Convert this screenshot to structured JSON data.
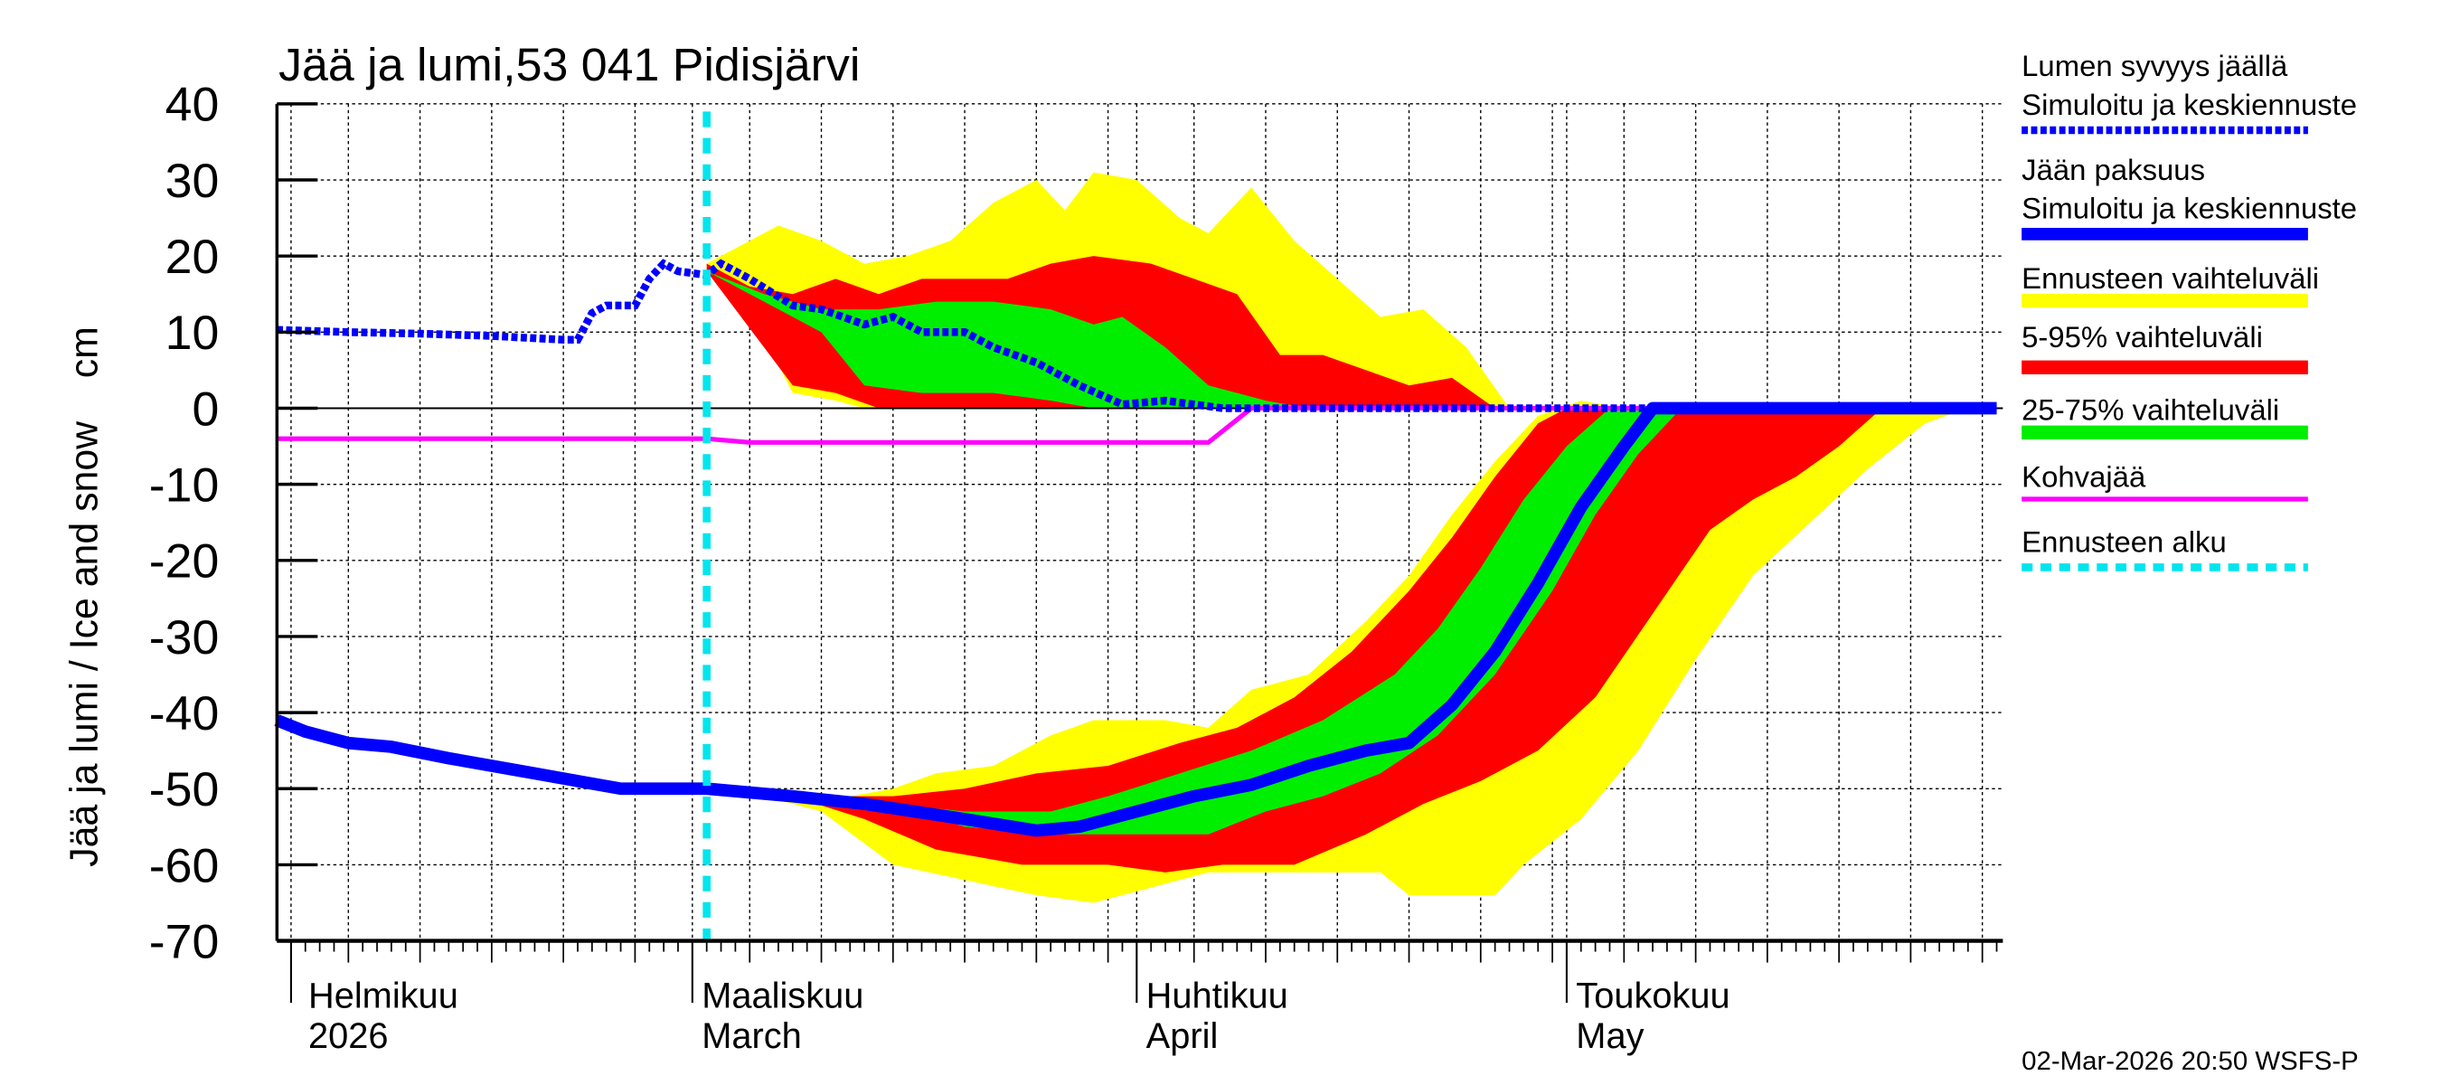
{
  "chart_data": {
    "type": "area",
    "title": "Jää ja lumi,53 041 Pidisjärvi",
    "ylabel": "Jää ja lumi / Ice and snow    cm",
    "ylim": [
      -70,
      40
    ],
    "yticks": [
      40,
      30,
      20,
      10,
      0,
      -10,
      -20,
      -30,
      -40,
      -50,
      -60,
      -70
    ],
    "xlim": [
      "2026-01-31",
      "2026-05-31"
    ],
    "grid": true,
    "legend_placement": "right",
    "month_labels": [
      {
        "date": "2026-02-01",
        "fi": "Helmikuu",
        "en": "2026"
      },
      {
        "date": "2026-03-01",
        "fi": "Maaliskuu",
        "en": "March"
      },
      {
        "date": "2026-04-01",
        "fi": "Huhtikuu",
        "en": "April"
      },
      {
        "date": "2026-05-01",
        "fi": "Toukokuu",
        "en": "May"
      }
    ],
    "forecast_start": "2026-03-02",
    "footer": "02-Mar-2026 20:50 WSFS-P",
    "legend": [
      {
        "key": "snow",
        "label1": "Lumen syvyys jäällä",
        "label2": "Simuloitu ja keskiennuste",
        "color": "#0000ff",
        "style": "dotted"
      },
      {
        "key": "ice",
        "label1": "Jään paksuus",
        "label2": "Simuloitu ja keskiennuste",
        "color": "#0000ff",
        "style": "solid"
      },
      {
        "key": "range",
        "label1": "Ennusteen vaihteluväli",
        "color": "#ffff00",
        "style": "band"
      },
      {
        "key": "p595",
        "label1": "5-95% vaihteluväli",
        "color": "#ff0000",
        "style": "band"
      },
      {
        "key": "p2575",
        "label1": "25-75% vaihteluväli",
        "color": "#00ee00",
        "style": "band"
      },
      {
        "key": "slush",
        "label1": "Kohvajää",
        "color": "#ff00ff",
        "style": "solid"
      },
      {
        "key": "fstart",
        "label1": "Ennusteen alku",
        "color": "#00e5ee",
        "style": "dotted"
      }
    ],
    "series": {
      "snow": [
        [
          "2026-01-31",
          10.3
        ],
        [
          "2026-02-05",
          10
        ],
        [
          "2026-02-10",
          9.8
        ],
        [
          "2026-02-15",
          9.5
        ],
        [
          "2026-02-20",
          9
        ],
        [
          "2026-02-21",
          9
        ],
        [
          "2026-02-22",
          12.5
        ],
        [
          "2026-02-23",
          13.5
        ],
        [
          "2026-02-25",
          13.5
        ],
        [
          "2026-02-26",
          17
        ],
        [
          "2026-02-27",
          19
        ],
        [
          "2026-02-28",
          18
        ],
        [
          "2026-03-02",
          17.5
        ],
        [
          "2026-03-03",
          19
        ],
        [
          "2026-03-05",
          17
        ],
        [
          "2026-03-08",
          13.5
        ],
        [
          "2026-03-10",
          13
        ],
        [
          "2026-03-13",
          11
        ],
        [
          "2026-03-15",
          12
        ],
        [
          "2026-03-17",
          10
        ],
        [
          "2026-03-20",
          10
        ],
        [
          "2026-03-22",
          8
        ],
        [
          "2026-03-25",
          6
        ],
        [
          "2026-03-28",
          3
        ],
        [
          "2026-03-31",
          0.5
        ],
        [
          "2026-04-03",
          1
        ],
        [
          "2026-04-07",
          0
        ],
        [
          "2026-05-31",
          0
        ]
      ],
      "ice": [
        [
          "2026-01-31",
          -41
        ],
        [
          "2026-02-02",
          -42.5
        ],
        [
          "2026-02-05",
          -44
        ],
        [
          "2026-02-08",
          -44.5
        ],
        [
          "2026-02-12",
          -46
        ],
        [
          "2026-02-15",
          -47
        ],
        [
          "2026-02-18",
          -48
        ],
        [
          "2026-02-21",
          -49
        ],
        [
          "2026-02-24",
          -50
        ],
        [
          "2026-03-02",
          -50
        ],
        [
          "2026-03-08",
          -51
        ],
        [
          "2026-03-13",
          -52
        ],
        [
          "2026-03-20",
          -54
        ],
        [
          "2026-03-25",
          -55.5
        ],
        [
          "2026-03-28",
          -55
        ],
        [
          "2026-04-01",
          -53
        ],
        [
          "2026-04-05",
          -51
        ],
        [
          "2026-04-09",
          -49.5
        ],
        [
          "2026-04-13",
          -47
        ],
        [
          "2026-04-17",
          -45
        ],
        [
          "2026-04-20",
          -44
        ],
        [
          "2026-04-23",
          -39
        ],
        [
          "2026-04-26",
          -32
        ],
        [
          "2026-04-29",
          -23
        ],
        [
          "2026-05-02",
          -13
        ],
        [
          "2026-05-05",
          -5
        ],
        [
          "2026-05-07",
          0
        ],
        [
          "2026-05-31",
          0
        ]
      ],
      "slush": [
        [
          "2026-01-31",
          -4
        ],
        [
          "2026-03-02",
          -4
        ],
        [
          "2026-03-05",
          -4.5
        ],
        [
          "2026-04-06",
          -4.5
        ],
        [
          "2026-04-09",
          0
        ],
        [
          "2026-05-31",
          0
        ]
      ],
      "range_snow": {
        "upper": [
          [
            "2026-03-02",
            19
          ],
          [
            "2026-03-04",
            21
          ],
          [
            "2026-03-07",
            24
          ],
          [
            "2026-03-10",
            22
          ],
          [
            "2026-03-13",
            19
          ],
          [
            "2026-03-16",
            20
          ],
          [
            "2026-03-19",
            22
          ],
          [
            "2026-03-22",
            27
          ],
          [
            "2026-03-25",
            30
          ],
          [
            "2026-03-27",
            26
          ],
          [
            "2026-03-29",
            31
          ],
          [
            "2026-04-01",
            30
          ],
          [
            "2026-04-04",
            25
          ],
          [
            "2026-04-06",
            23
          ],
          [
            "2026-04-09",
            29
          ],
          [
            "2026-04-12",
            22
          ],
          [
            "2026-04-15",
            17
          ],
          [
            "2026-04-18",
            12
          ],
          [
            "2026-04-21",
            13
          ],
          [
            "2026-04-24",
            8
          ],
          [
            "2026-04-27",
            0
          ]
        ],
        "lower": [
          [
            "2026-03-02",
            18
          ],
          [
            "2026-03-05",
            13
          ],
          [
            "2026-03-08",
            2
          ],
          [
            "2026-03-11",
            1
          ],
          [
            "2026-03-13",
            0
          ],
          [
            "2026-04-27",
            0
          ]
        ]
      },
      "p595_snow": {
        "upper": [
          [
            "2026-03-02",
            19
          ],
          [
            "2026-03-05",
            16
          ],
          [
            "2026-03-08",
            15
          ],
          [
            "2026-03-11",
            17
          ],
          [
            "2026-03-14",
            15
          ],
          [
            "2026-03-17",
            17
          ],
          [
            "2026-03-20",
            17
          ],
          [
            "2026-03-23",
            17
          ],
          [
            "2026-03-26",
            19
          ],
          [
            "2026-03-29",
            20
          ],
          [
            "2026-04-02",
            19
          ],
          [
            "2026-04-05",
            17
          ],
          [
            "2026-04-08",
            15
          ],
          [
            "2026-04-11",
            7
          ],
          [
            "2026-04-14",
            7
          ],
          [
            "2026-04-17",
            5
          ],
          [
            "2026-04-20",
            3
          ],
          [
            "2026-04-23",
            4
          ],
          [
            "2026-04-26",
            0
          ]
        ],
        "lower": [
          [
            "2026-03-02",
            18
          ],
          [
            "2026-03-06",
            8
          ],
          [
            "2026-03-08",
            3
          ],
          [
            "2026-03-11",
            2
          ],
          [
            "2026-03-14",
            0
          ],
          [
            "2026-04-26",
            0
          ]
        ]
      },
      "p2575_snow": {
        "upper": [
          [
            "2026-03-02",
            18
          ],
          [
            "2026-03-06",
            15
          ],
          [
            "2026-03-10",
            13
          ],
          [
            "2026-03-14",
            13
          ],
          [
            "2026-03-18",
            14
          ],
          [
            "2026-03-22",
            14
          ],
          [
            "2026-03-26",
            13
          ],
          [
            "2026-03-29",
            11
          ],
          [
            "2026-03-31",
            12
          ],
          [
            "2026-04-03",
            8
          ],
          [
            "2026-04-06",
            3
          ],
          [
            "2026-04-10",
            1
          ],
          [
            "2026-04-13",
            0
          ]
        ],
        "lower": [
          [
            "2026-03-02",
            18
          ],
          [
            "2026-03-06",
            14
          ],
          [
            "2026-03-10",
            10
          ],
          [
            "2026-03-13",
            3
          ],
          [
            "2026-03-17",
            2
          ],
          [
            "2026-03-22",
            2
          ],
          [
            "2026-03-26",
            1
          ],
          [
            "2026-03-29",
            0
          ],
          [
            "2026-04-13",
            0
          ]
        ]
      },
      "range_ice": {
        "upper": [
          [
            "2026-03-05",
            -50.5
          ],
          [
            "2026-03-12",
            -51
          ],
          [
            "2026-03-15",
            -50
          ],
          [
            "2026-03-18",
            -48
          ],
          [
            "2026-03-22",
            -47
          ],
          [
            "2026-03-26",
            -43
          ],
          [
            "2026-03-29",
            -41
          ],
          [
            "2026-04-03",
            -41
          ],
          [
            "2026-04-06",
            -42
          ],
          [
            "2026-04-09",
            -37
          ],
          [
            "2026-04-13",
            -35
          ],
          [
            "2026-04-17",
            -28
          ],
          [
            "2026-04-20",
            -22
          ],
          [
            "2026-04-23",
            -14
          ],
          [
            "2026-04-26",
            -7
          ],
          [
            "2026-04-29",
            -1
          ],
          [
            "2026-05-02",
            1
          ],
          [
            "2026-05-05",
            0
          ],
          [
            "2026-05-29",
            0
          ]
        ],
        "lower": [
          [
            "2026-03-05",
            -50.5
          ],
          [
            "2026-03-10",
            -53
          ],
          [
            "2026-03-15",
            -60
          ],
          [
            "2026-03-20",
            -62
          ],
          [
            "2026-03-25",
            -64
          ],
          [
            "2026-03-29",
            -65
          ],
          [
            "2026-04-02",
            -63
          ],
          [
            "2026-04-06",
            -61
          ],
          [
            "2026-04-12",
            -61
          ],
          [
            "2026-04-18",
            -61
          ],
          [
            "2026-04-20",
            -64
          ],
          [
            "2026-04-26",
            -64
          ],
          [
            "2026-04-28",
            -60
          ],
          [
            "2026-05-02",
            -54
          ],
          [
            "2026-05-06",
            -45
          ],
          [
            "2026-05-10",
            -33
          ],
          [
            "2026-05-14",
            -22
          ],
          [
            "2026-05-18",
            -15
          ],
          [
            "2026-05-22",
            -8
          ],
          [
            "2026-05-26",
            -2
          ],
          [
            "2026-05-29",
            0
          ]
        ]
      },
      "p595_ice": {
        "upper": [
          [
            "2026-03-08",
            -51
          ],
          [
            "2026-03-15",
            -51
          ],
          [
            "2026-03-20",
            -50
          ],
          [
            "2026-03-25",
            -48
          ],
          [
            "2026-03-30",
            -47
          ],
          [
            "2026-04-04",
            -44
          ],
          [
            "2026-04-08",
            -42
          ],
          [
            "2026-04-12",
            -38
          ],
          [
            "2026-04-16",
            -32
          ],
          [
            "2026-04-20",
            -24
          ],
          [
            "2026-04-23",
            -17
          ],
          [
            "2026-04-26",
            -9
          ],
          [
            "2026-04-29",
            -2
          ],
          [
            "2026-05-01",
            0
          ],
          [
            "2026-05-23",
            0
          ]
        ],
        "lower": [
          [
            "2026-03-08",
            -51
          ],
          [
            "2026-03-13",
            -54
          ],
          [
            "2026-03-18",
            -58
          ],
          [
            "2026-03-24",
            -60
          ],
          [
            "2026-03-30",
            -60
          ],
          [
            "2026-04-03",
            -61
          ],
          [
            "2026-04-07",
            -60
          ],
          [
            "2026-04-12",
            -60
          ],
          [
            "2026-04-17",
            -56
          ],
          [
            "2026-04-21",
            -52
          ],
          [
            "2026-04-25",
            -49
          ],
          [
            "2026-04-29",
            -45
          ],
          [
            "2026-05-03",
            -38
          ],
          [
            "2026-05-07",
            -27
          ],
          [
            "2026-05-11",
            -16
          ],
          [
            "2026-05-14",
            -12
          ],
          [
            "2026-05-17",
            -9
          ],
          [
            "2026-05-20",
            -5
          ],
          [
            "2026-05-23",
            0
          ]
        ]
      },
      "p2575_ice": {
        "upper": [
          [
            "2026-03-15",
            -52
          ],
          [
            "2026-03-20",
            -53
          ],
          [
            "2026-03-26",
            -53
          ],
          [
            "2026-03-30",
            -51
          ],
          [
            "2026-04-04",
            -48
          ],
          [
            "2026-04-09",
            -45
          ],
          [
            "2026-04-14",
            -41
          ],
          [
            "2026-04-19",
            -35
          ],
          [
            "2026-04-22",
            -29
          ],
          [
            "2026-04-25",
            -21
          ],
          [
            "2026-04-28",
            -12
          ],
          [
            "2026-05-01",
            -5
          ],
          [
            "2026-05-04",
            0
          ],
          [
            "2026-05-09",
            0
          ]
        ],
        "lower": [
          [
            "2026-03-15",
            -52
          ],
          [
            "2026-03-20",
            -55
          ],
          [
            "2026-03-26",
            -56
          ],
          [
            "2026-04-01",
            -56
          ],
          [
            "2026-04-06",
            -56
          ],
          [
            "2026-04-10",
            -53
          ],
          [
            "2026-04-14",
            -51
          ],
          [
            "2026-04-18",
            -48
          ],
          [
            "2026-04-22",
            -43
          ],
          [
            "2026-04-26",
            -35
          ],
          [
            "2026-04-30",
            -24
          ],
          [
            "2026-05-03",
            -14
          ],
          [
            "2026-05-06",
            -6
          ],
          [
            "2026-05-09",
            0
          ]
        ]
      }
    }
  }
}
